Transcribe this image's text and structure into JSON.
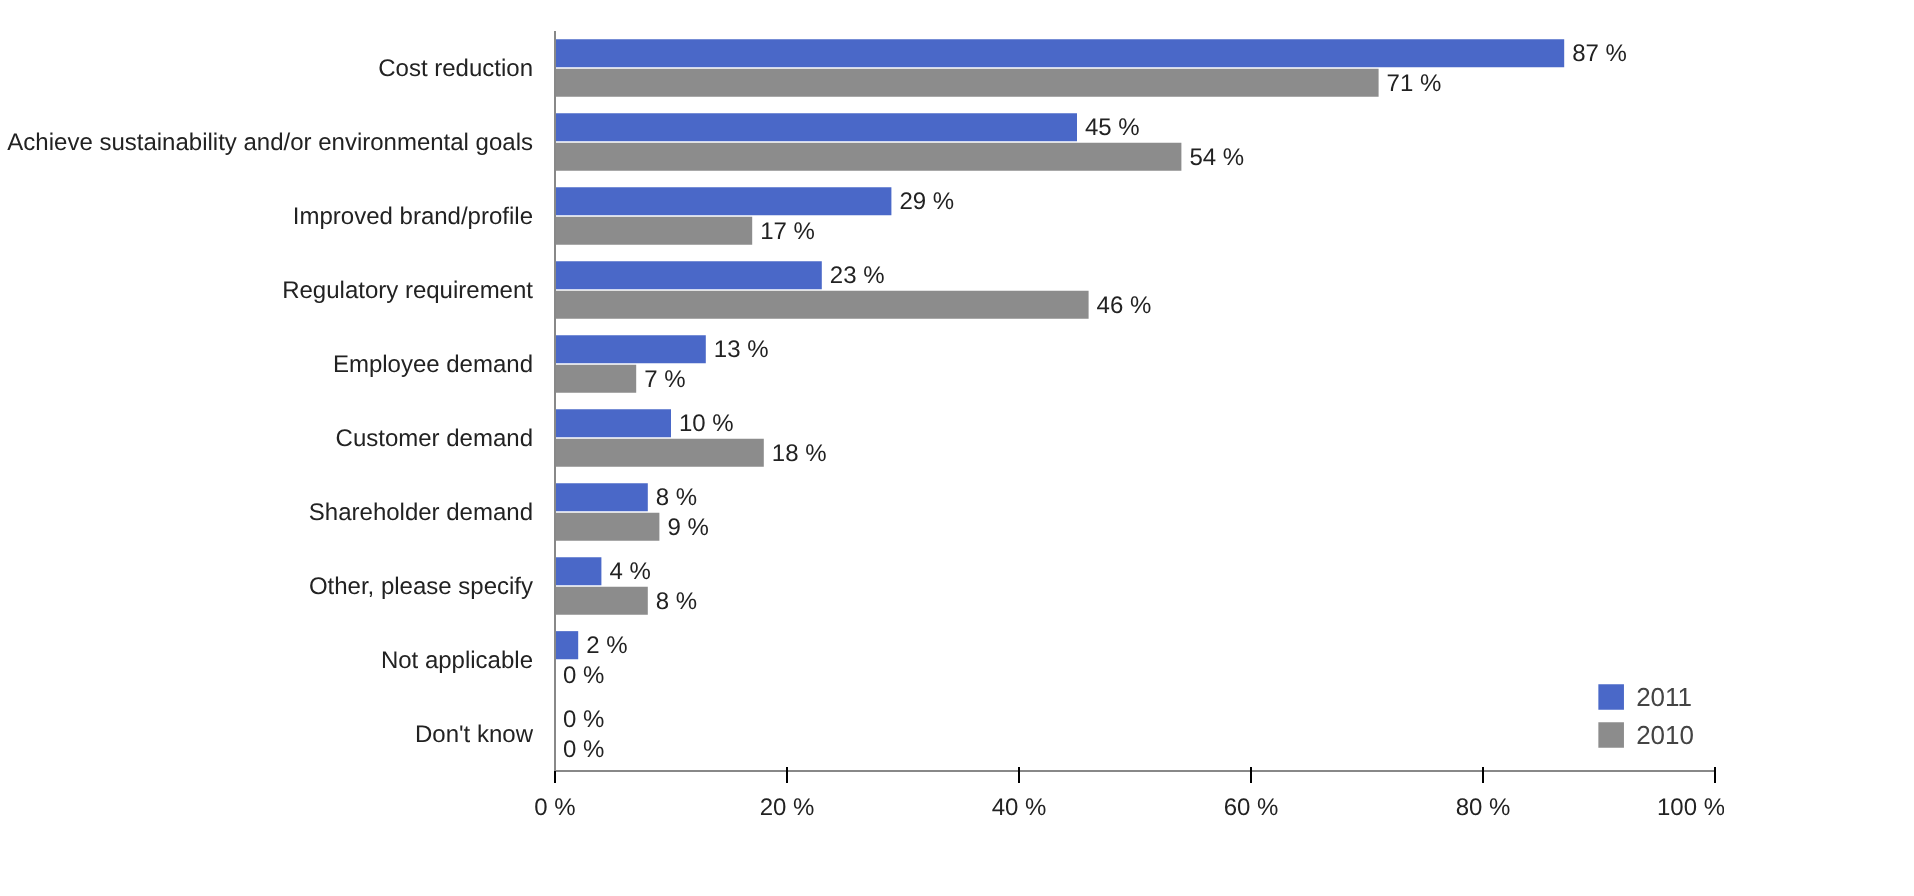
{
  "chart_data": {
    "type": "bar",
    "orientation": "horizontal",
    "categories": [
      "Cost reduction",
      "Achieve sustainability and/or environmental goals",
      "Improved brand/profile",
      "Regulatory requirement",
      "Employee demand",
      "Customer demand",
      "Shareholder demand",
      "Other, please specify",
      "Not applicable",
      "Don't know"
    ],
    "series": [
      {
        "name": "2011",
        "color": "#4a68c8",
        "values": [
          87,
          45,
          29,
          23,
          13,
          10,
          8,
          4,
          2,
          0
        ],
        "value_labels": [
          "87 %",
          "45 %",
          "29 %",
          "23 %",
          "13 %",
          "10 %",
          "8 %",
          "4 %",
          "2 %",
          "0 %"
        ]
      },
      {
        "name": "2010",
        "color": "#8c8c8c",
        "values": [
          71,
          54,
          17,
          46,
          7,
          18,
          9,
          8,
          0,
          0
        ],
        "value_labels": [
          "71 %",
          "54 %",
          "17 %",
          "46 %",
          "7 %",
          "18 %",
          "9 %",
          "8 %",
          "0 %",
          "0 %"
        ]
      }
    ],
    "xlim": [
      0,
      100
    ],
    "xticks": [
      {
        "value": 0,
        "label": "0 %"
      },
      {
        "value": 20,
        "label": "20 %"
      },
      {
        "value": 40,
        "label": "40 %"
      },
      {
        "value": 60,
        "label": "60 %"
      },
      {
        "value": 80,
        "label": "80 %"
      },
      {
        "value": 100,
        "label": "100 %"
      }
    ],
    "grid": false,
    "legend": "right"
  }
}
